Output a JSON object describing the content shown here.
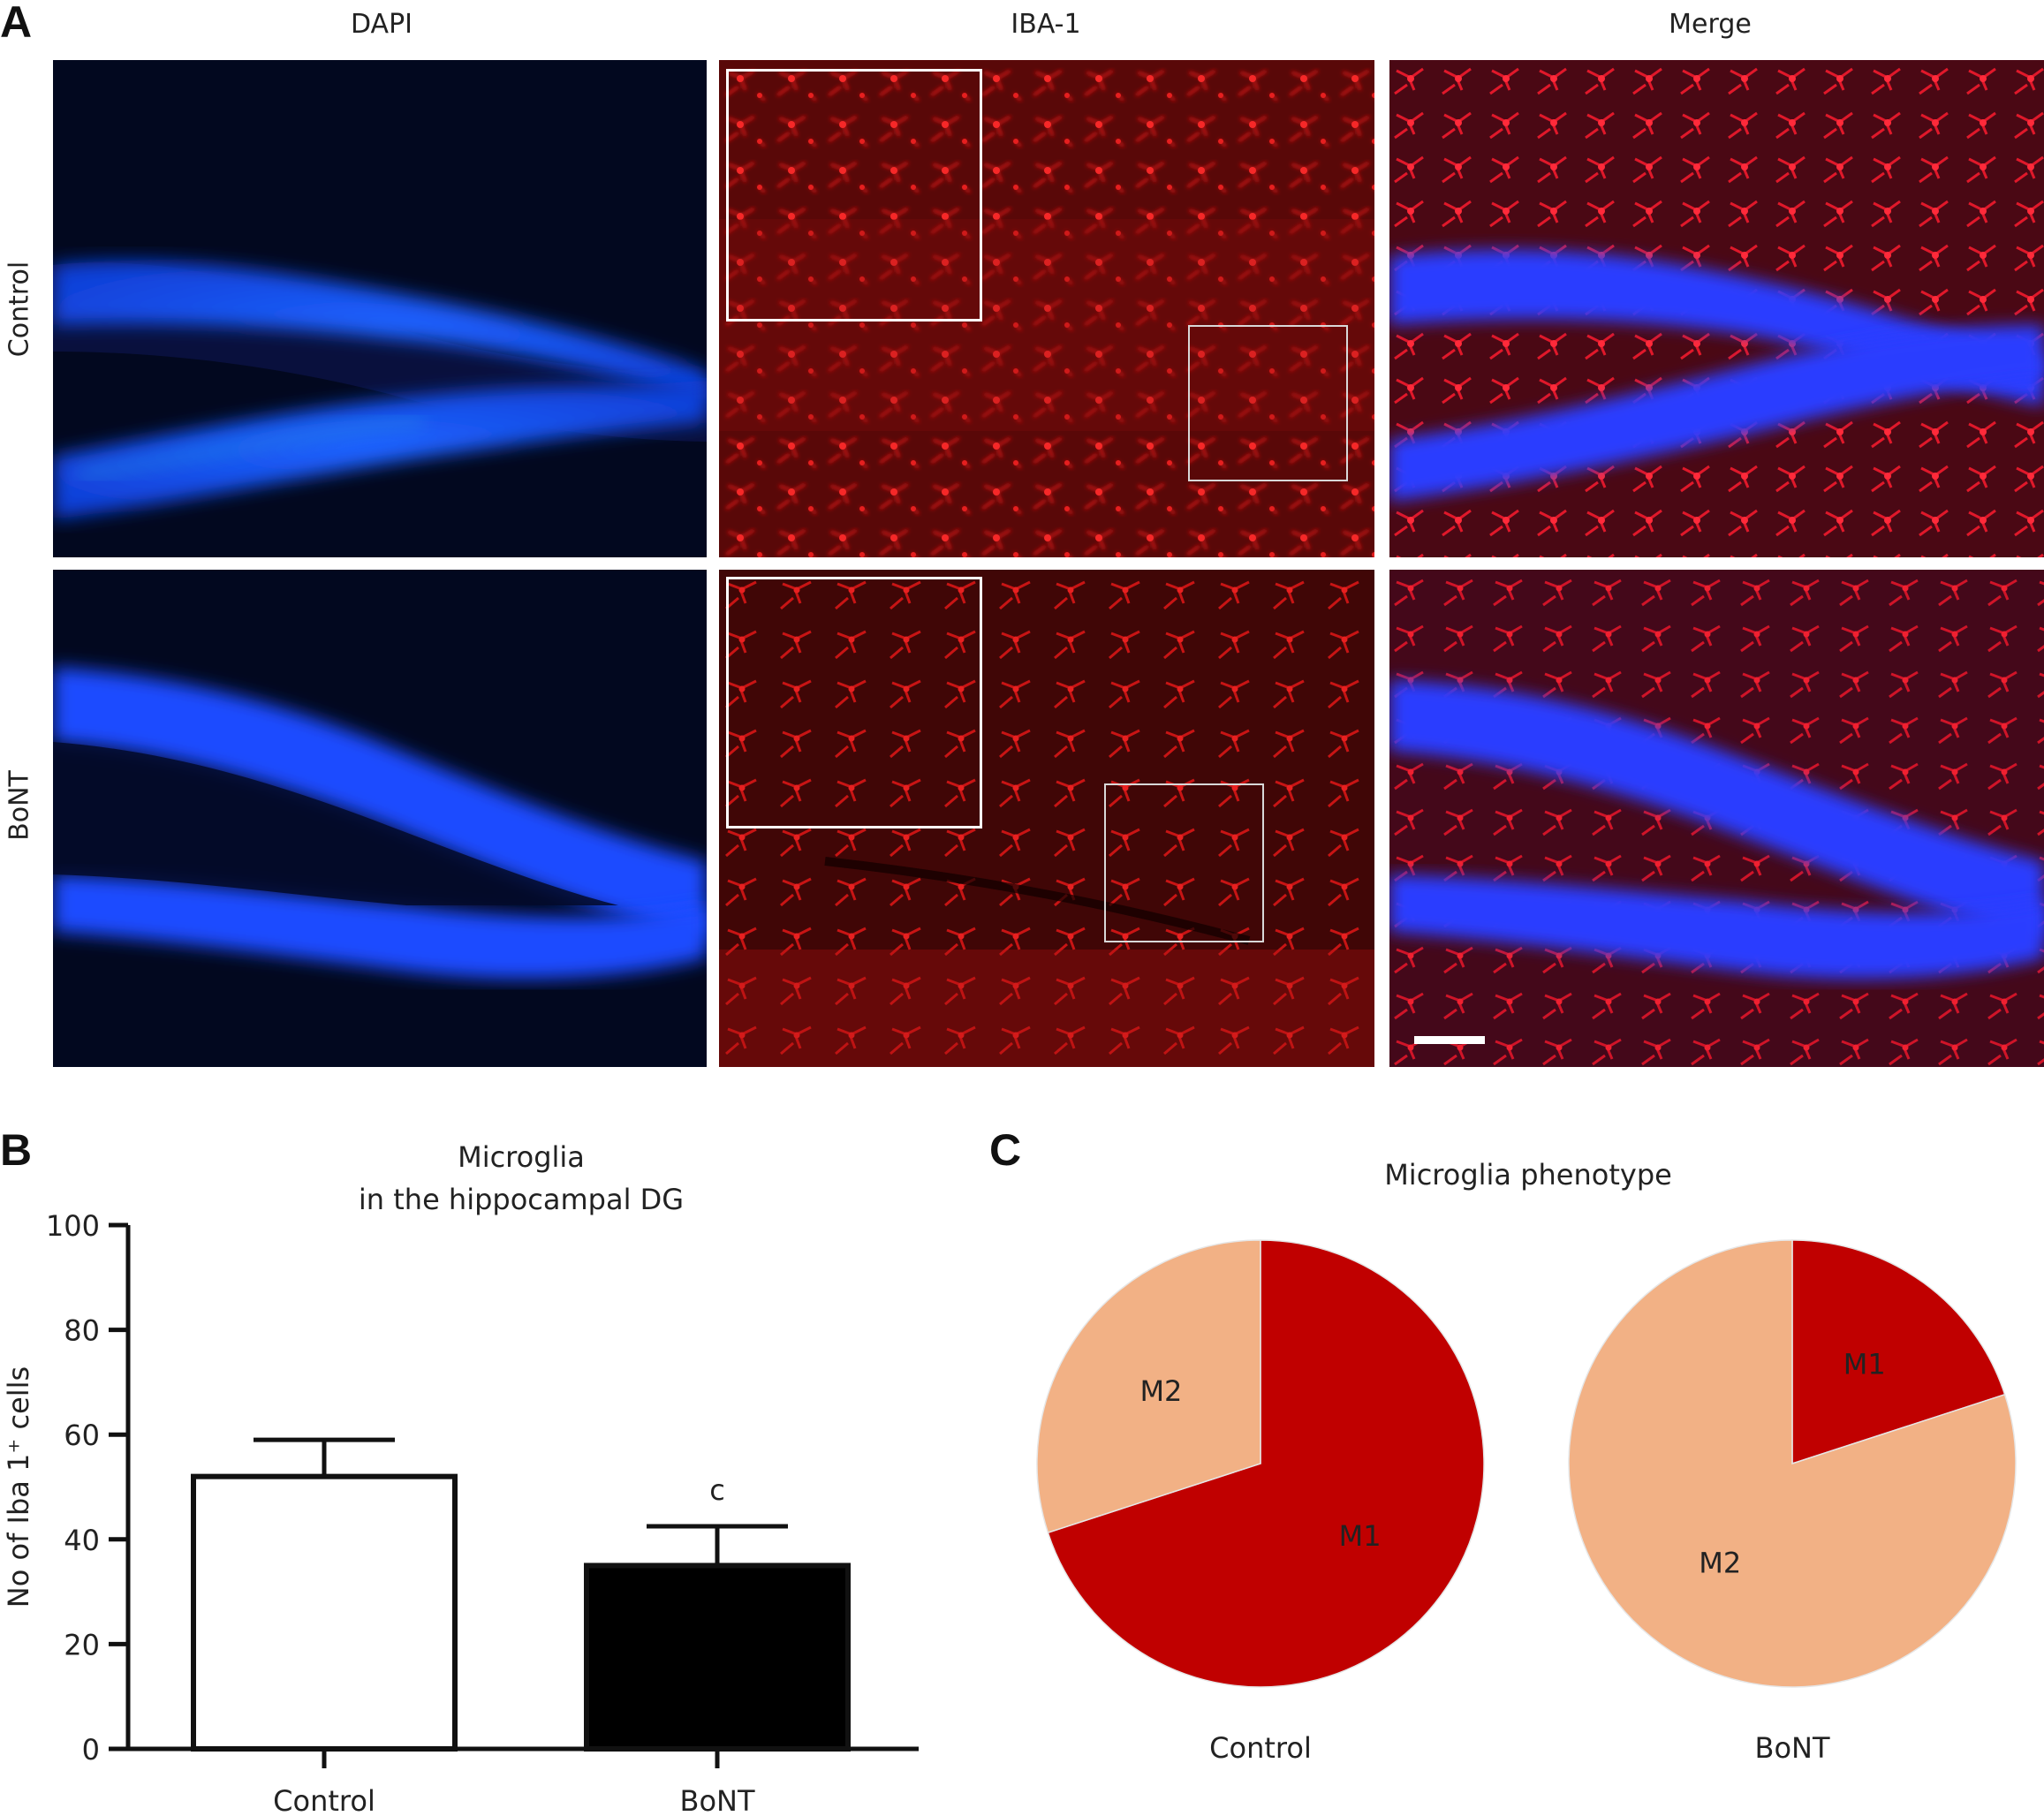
{
  "panel_a": {
    "label": "A",
    "columns": [
      "DAPI",
      "IBA-1",
      "Merge"
    ],
    "rows": [
      "Control",
      "BoNT"
    ]
  },
  "panel_b": {
    "label": "B",
    "title_line1": "Microglia",
    "title_line2": "in the hippocampal DG",
    "ylabel": "No of Iba 1⁺ cells",
    "significance": "c"
  },
  "panel_c": {
    "label": "C",
    "title": "Microglia phenotype"
  },
  "chart_data": [
    {
      "type": "bar",
      "title": "Microglia in the hippocampal DG",
      "categories": [
        "Control",
        "BoNT"
      ],
      "values": [
        52,
        35
      ],
      "errors": [
        7,
        7.5
      ],
      "ylabel": "No of Iba 1⁺ cells",
      "ylim": [
        0,
        100
      ],
      "yticks": [
        "0",
        "20",
        "40",
        "60",
        "80",
        "100"
      ],
      "bar_colors": [
        "#ffffff",
        "#000000"
      ],
      "annotation": {
        "category": "BoNT",
        "text": "c"
      }
    },
    {
      "type": "pie",
      "title": "Microglia phenotype",
      "pies": [
        {
          "name": "Control",
          "slices": [
            {
              "label": "M1",
              "value": 70,
              "color": "#c00000"
            },
            {
              "label": "M2",
              "value": 30,
              "color": "#f2b185"
            }
          ]
        },
        {
          "name": "BoNT",
          "slices": [
            {
              "label": "M1",
              "value": 20,
              "color": "#c00000"
            },
            {
              "label": "M2",
              "value": 80,
              "color": "#f2b185"
            }
          ]
        }
      ]
    }
  ]
}
